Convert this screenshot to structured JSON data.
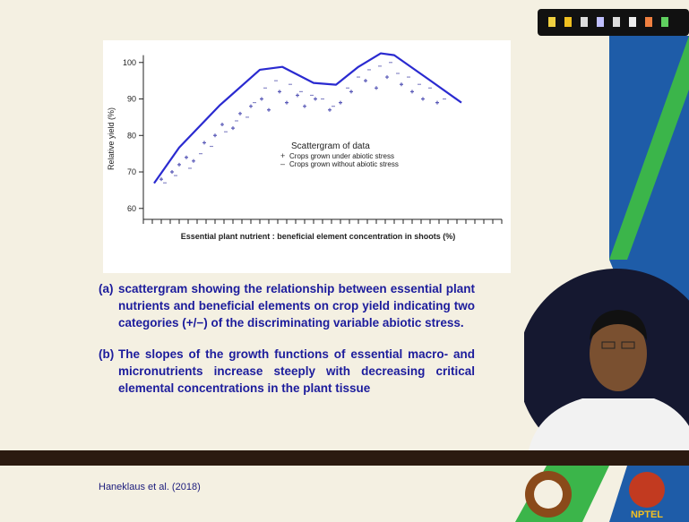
{
  "chart_data": {
    "type": "scatter",
    "legend_title": "Scattergram of data",
    "x_label": "Essential plant nutrient : beneficial element concentration in shoots (%)",
    "y_label": "Relative yield (%)",
    "xlim": [
      0,
      100
    ],
    "ylim": [
      57,
      102
    ],
    "yticks": [
      60,
      70,
      80,
      90,
      100
    ],
    "series": [
      {
        "name": "Crops grown under abiotic stress",
        "symbol": "+",
        "shape": "cross",
        "color": "#5a5ab8",
        "x": [
          5,
          8,
          10,
          12,
          14,
          17,
          20,
          22,
          25,
          27,
          30,
          33,
          35,
          38,
          40,
          43,
          45,
          48,
          52,
          55,
          58,
          62,
          65,
          68,
          72,
          75,
          78,
          82
        ],
        "values": [
          68,
          70,
          72,
          74,
          73,
          78,
          80,
          83,
          82,
          86,
          88,
          90,
          87,
          92,
          89,
          91,
          88,
          90,
          87,
          89,
          92,
          95,
          93,
          96,
          94,
          92,
          90,
          89
        ]
      },
      {
        "name": "Crops grown without abiotic stress",
        "symbol": "–",
        "shape": "dash",
        "color": "#8a8ac8",
        "x": [
          6,
          9,
          13,
          16,
          19,
          23,
          26,
          29,
          31,
          34,
          37,
          41,
          44,
          47,
          50,
          53,
          57,
          60,
          63,
          66,
          69,
          71,
          74,
          77,
          80,
          84
        ],
        "values": [
          67,
          69,
          71,
          75,
          77,
          81,
          84,
          85,
          89,
          93,
          95,
          94,
          92,
          91,
          90,
          88,
          93,
          96,
          98,
          99,
          100,
          97,
          96,
          94,
          93,
          90
        ]
      }
    ],
    "envelope": {
      "color": "#2a2ad0",
      "x": [
        3,
        10,
        21.25,
        32.5,
        38.75,
        47.5,
        53.75,
        60,
        66.25,
        70,
        80,
        88.75
      ],
      "values": [
        66.9,
        76.7,
        88.2,
        98,
        98.8,
        94.4,
        93.9,
        98.8,
        102.5,
        102,
        95.1,
        89
      ]
    }
  },
  "items": [
    {
      "label": "(a)",
      "text": "scattergram showing the relationship between essential plant nutrients and beneficial elements on crop yield indicating two categories (+/−) of the discriminating variable abiotic stress."
    },
    {
      "label": "(b)",
      "text": "The slopes of the growth functions of essential macro- and micronutrients increase steeply with decreasing critical elemental concentrations in the plant tissue"
    }
  ],
  "footer": {
    "citation": "Haneklaus et al. (2018)",
    "logo_text": "NPTEL"
  }
}
